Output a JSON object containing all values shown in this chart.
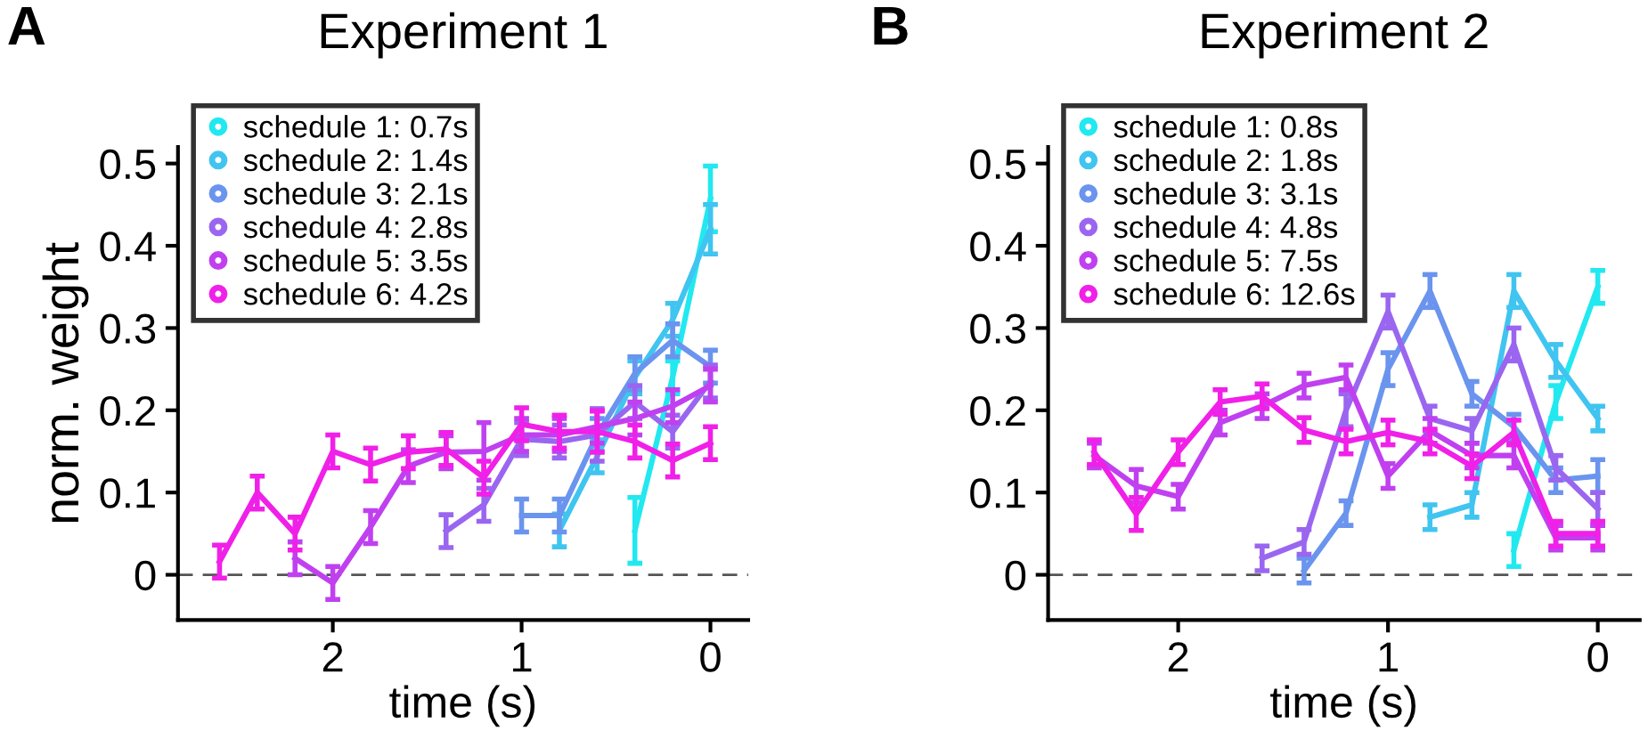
{
  "chart_data": [
    {
      "type": "line",
      "title": "Experiment 1",
      "xlabel": "time (s)",
      "ylabel": "norm. weight",
      "annotations": [
        "A"
      ],
      "xlim": [
        2.82,
        -0.2
      ],
      "xticks": [
        2,
        1,
        0
      ],
      "ylim": [
        -0.055,
        0.52
      ],
      "yticks": [
        0,
        0.1,
        0.2,
        0.3,
        0.4,
        0.5
      ],
      "legend": "top left",
      "grid": false,
      "ref_lines": [
        {
          "axis": "y",
          "value": 0,
          "label": null,
          "color": "#555555",
          "line_style": "dashed"
        }
      ],
      "series": [
        {
          "name": "schedule 1: 0.7s",
          "color": "#22e8f0",
          "x": [
            0.4,
            0.2,
            0.0
          ],
          "values": [
            0.054,
            0.24,
            0.457
          ],
          "errors": [
            0.04,
            0.02,
            0.04
          ]
        },
        {
          "name": "schedule 2: 1.4s",
          "color": "#40c4f0",
          "x": [
            0.8,
            0.6,
            0.4,
            0.2,
            0.0
          ],
          "values": [
            0.054,
            0.144,
            0.24,
            0.31,
            0.42
          ],
          "errors": [
            0.02,
            0.02,
            0.02,
            0.02,
            0.03
          ]
        },
        {
          "name": "schedule 3: 2.1s",
          "color": "#6a94ee",
          "x": [
            1.0,
            0.8,
            0.6,
            0.4,
            0.2,
            0.0
          ],
          "values": [
            0.072,
            0.072,
            0.17,
            0.245,
            0.285,
            0.253
          ],
          "errors": [
            0.02,
            0.02,
            0.02,
            0.02,
            0.02,
            0.02
          ]
        },
        {
          "name": "schedule 4: 2.8s",
          "color": "#9a66f0",
          "x": [
            1.4,
            1.2,
            1.0,
            0.8,
            0.6,
            0.4,
            0.2,
            0.0
          ],
          "values": [
            0.053,
            0.085,
            0.165,
            0.162,
            0.17,
            0.21,
            0.174,
            0.235
          ],
          "errors": [
            0.02,
            0.02,
            0.02,
            0.02,
            0.032,
            0.02,
            0.02,
            0.02
          ]
        },
        {
          "name": "schedule 5: 3.5s",
          "color": "#c040f0",
          "x": [
            2.2,
            2.0,
            1.8,
            1.6,
            1.4,
            1.2,
            1.0,
            0.8,
            0.6,
            0.4,
            0.2,
            0.0
          ],
          "values": [
            0.02,
            -0.01,
            0.058,
            0.132,
            0.149,
            0.15,
            0.17,
            0.17,
            0.18,
            0.19,
            0.205,
            0.23
          ],
          "errors": [
            0.02,
            0.02,
            0.02,
            0.02,
            0.02,
            0.035,
            0.02,
            0.02,
            0.02,
            0.02,
            0.02,
            0.02
          ]
        },
        {
          "name": "schedule 6: 4.2s",
          "color": "#f020e8",
          "x": [
            2.6,
            2.4,
            2.2,
            2.0,
            1.8,
            1.6,
            1.4,
            1.2,
            1.0,
            0.8,
            0.6,
            0.4,
            0.2,
            0.0
          ],
          "values": [
            0.016,
            0.1,
            0.05,
            0.15,
            0.134,
            0.149,
            0.153,
            0.118,
            0.183,
            0.174,
            0.174,
            0.162,
            0.139,
            0.16
          ],
          "errors": [
            0.02,
            0.02,
            0.02,
            0.02,
            0.02,
            0.02,
            0.02,
            0.02,
            0.02,
            0.02,
            0.025,
            0.02,
            0.02,
            0.02
          ]
        }
      ]
    },
    {
      "type": "line",
      "title": "Experiment 2",
      "xlabel": "time (s)",
      "annotations": [
        "B"
      ],
      "xlim": [
        2.62,
        -0.2
      ],
      "xticks": [
        2,
        1,
        0
      ],
      "ylim": [
        -0.055,
        0.52
      ],
      "yticks": [
        0,
        0.1,
        0.2,
        0.3,
        0.4,
        0.5
      ],
      "legend": "top left",
      "grid": false,
      "ref_lines": [
        {
          "axis": "y",
          "value": 0,
          "label": null,
          "color": "#555555",
          "line_style": "dashed"
        }
      ],
      "series": [
        {
          "name": "schedule 1: 0.8s",
          "color": "#22e8f0",
          "x": [
            0.4,
            0.2,
            0.0
          ],
          "values": [
            0.03,
            0.21,
            0.35
          ],
          "errors": [
            0.02,
            0.02,
            0.02
          ]
        },
        {
          "name": "schedule 2: 1.8s",
          "color": "#40c4f0",
          "x": [
            0.8,
            0.6,
            0.4,
            0.2,
            0.0
          ],
          "values": [
            0.07,
            0.085,
            0.345,
            0.26,
            0.19
          ],
          "errors": [
            0.015,
            0.015,
            0.02,
            0.02,
            0.015
          ]
        },
        {
          "name": "schedule 3: 3.1s",
          "color": "#6a94ee",
          "x": [
            1.4,
            1.2,
            1.0,
            0.8,
            0.6,
            0.4,
            0.2,
            0.0
          ],
          "values": [
            0.005,
            0.075,
            0.25,
            0.345,
            0.22,
            0.18,
            0.115,
            0.12
          ],
          "errors": [
            0.015,
            0.015,
            0.02,
            0.02,
            0.015,
            0.015,
            0.015,
            0.02
          ]
        },
        {
          "name": "schedule 4: 4.8s",
          "color": "#9a66f0",
          "x": [
            1.6,
            1.4,
            1.2,
            1.0,
            0.8,
            0.6,
            0.4,
            0.2,
            0.0
          ],
          "values": [
            0.02,
            0.04,
            0.2,
            0.32,
            0.19,
            0.175,
            0.28,
            0.13,
            0.08
          ],
          "errors": [
            0.015,
            0.015,
            0.02,
            0.02,
            0.015,
            0.015,
            0.02,
            0.015,
            0.02
          ]
        },
        {
          "name": "schedule 5: 7.5s",
          "color": "#c040f0",
          "x": [
            2.4,
            2.2,
            2.0,
            1.8,
            1.6,
            1.4,
            1.2,
            1.0,
            0.8,
            0.6,
            0.4,
            0.2,
            0.0
          ],
          "values": [
            0.145,
            0.108,
            0.095,
            0.185,
            0.205,
            0.23,
            0.24,
            0.12,
            0.175,
            0.145,
            0.145,
            0.045,
            0.045
          ],
          "errors": [
            0.015,
            0.02,
            0.015,
            0.015,
            0.015,
            0.015,
            0.015,
            0.015,
            0.015,
            0.015,
            0.015,
            0.015,
            0.015
          ]
        },
        {
          "name": "schedule 6: 12.6s",
          "color": "#f020e8",
          "x": [
            2.4,
            2.2,
            2.0,
            1.8,
            1.6,
            1.4,
            1.2,
            1.0,
            0.8,
            0.6,
            0.4,
            0.2,
            0.0
          ],
          "values": [
            0.149,
            0.074,
            0.149,
            0.21,
            0.217,
            0.176,
            0.162,
            0.173,
            0.162,
            0.132,
            0.173,
            0.05,
            0.05
          ],
          "errors": [
            0.015,
            0.02,
            0.015,
            0.015,
            0.015,
            0.015,
            0.015,
            0.015,
            0.015,
            0.015,
            0.015,
            0.015,
            0.015
          ]
        }
      ]
    }
  ]
}
